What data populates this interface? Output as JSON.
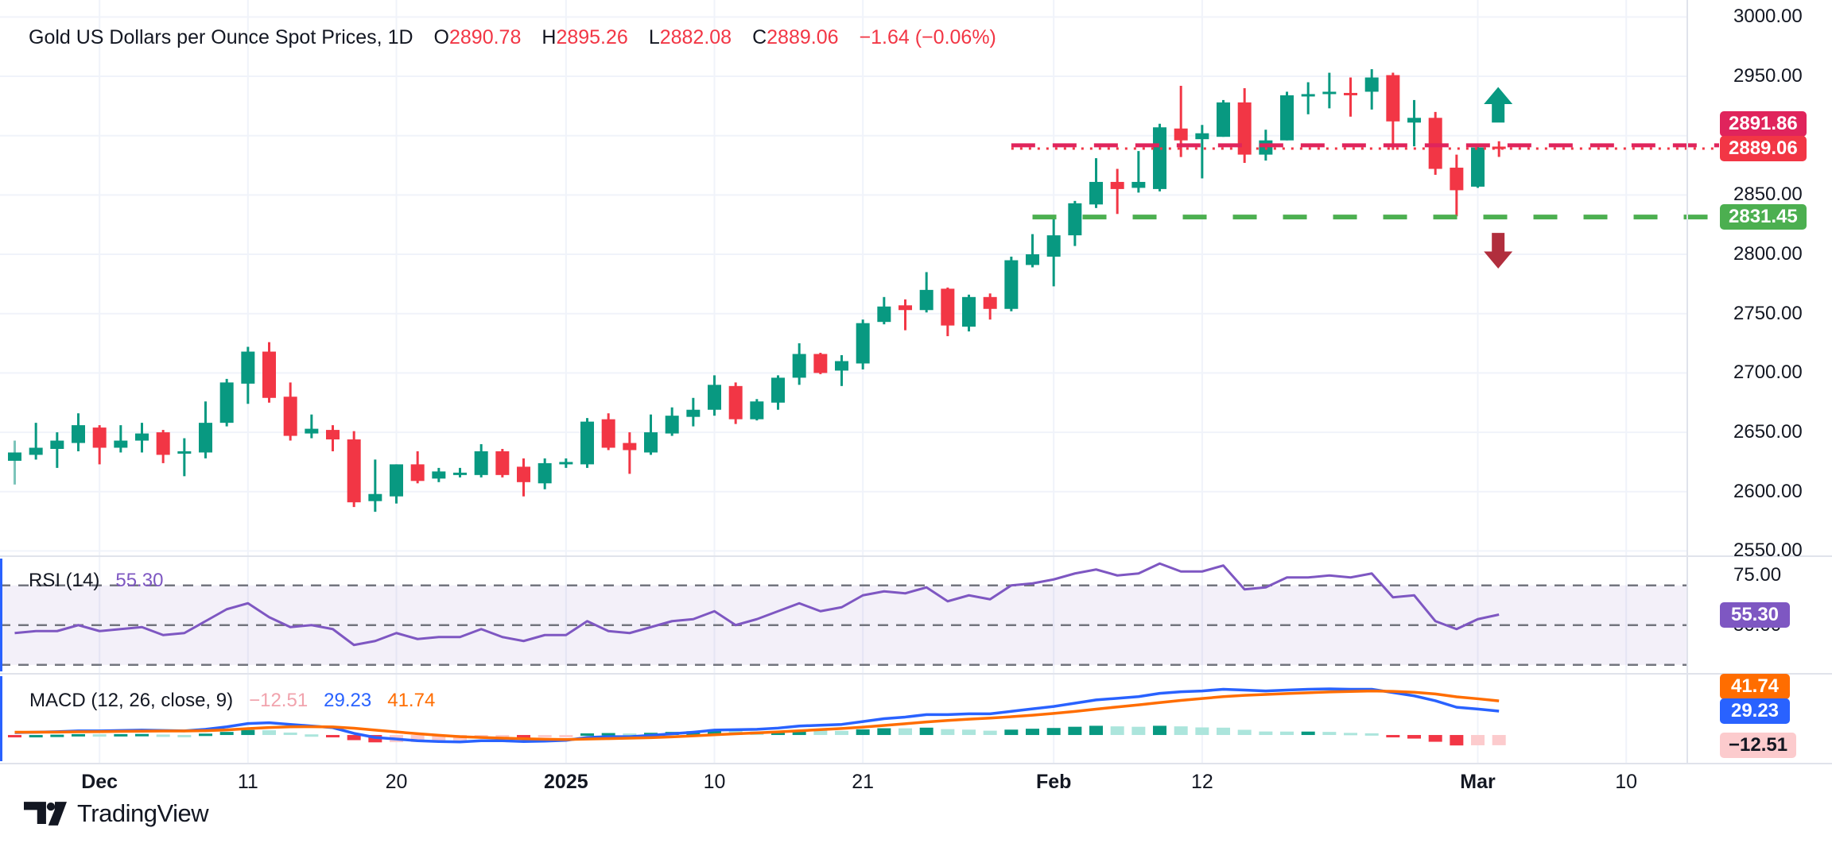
{
  "colors": {
    "up": "#089981",
    "down": "#F23645",
    "grid": "#F0F3FA",
    "separator": "#E0E3EB",
    "text": "#131722",
    "pink_line": "#E0245C",
    "close_line": "#F23645",
    "support_line": "#4CAF50",
    "rsi_line": "#7E57C2",
    "rsi_band": "#73767F",
    "rsi_fill": "rgba(126,87,194,0.09)",
    "macd_line": "#2962FF",
    "signal_line": "#FF6D00",
    "hist_up": "#089981",
    "hist_up_weak": "#ACE5DC",
    "hist_down": "#F23645",
    "hist_down_weak": "#FCCBCD",
    "down_arrow": "#B12E3D",
    "pane_accent": "#2962FF",
    "faded_wick": "#7CC4BA"
  },
  "legend": {
    "title": "Gold US Dollars per Ounce Spot Prices, 1D",
    "ohlc": [
      {
        "k": "O",
        "v": "2890.78"
      },
      {
        "k": "H",
        "v": "2895.26"
      },
      {
        "k": "L",
        "v": "2882.08"
      },
      {
        "k": "C",
        "v": "2889.06"
      }
    ],
    "change": "−1.64 (−0.06%)"
  },
  "rsi_legend": {
    "label": "RSI (14)",
    "value": "55.30"
  },
  "macd_legend": {
    "label": "MACD (12, 26, close, 9)",
    "hist": "−12.51",
    "macd": "29.23",
    "signal": "41.74"
  },
  "price_axis": {
    "ticks": [
      {
        "label": "3000.00",
        "value": 3000
      },
      {
        "label": "2950.00",
        "value": 2950
      },
      {
        "label": "2850.00",
        "value": 2850
      },
      {
        "label": "2800.00",
        "value": 2800
      },
      {
        "label": "2750.00",
        "value": 2750
      },
      {
        "label": "2700.00",
        "value": 2700
      },
      {
        "label": "2650.00",
        "value": 2650
      },
      {
        "label": "2600.00",
        "value": 2600
      },
      {
        "label": "2550.00",
        "value": 2550
      }
    ],
    "badges": [
      {
        "text": "2891.86",
        "value": 2891.86,
        "bg": "#E0245C",
        "fg": "#FFFFFF",
        "anchor": false
      },
      {
        "text": "2889.06",
        "value": 2889.06,
        "bg": "#F23645",
        "fg": "#FFFFFF",
        "anchor": true
      },
      {
        "text": "2831.45",
        "value": 2831.45,
        "bg": "#4CAF50",
        "fg": "#FFFFFF",
        "anchor": false
      }
    ]
  },
  "rsi_axis": {
    "ticks": [
      {
        "label": "75.00",
        "value": 75
      },
      {
        "label": "50.00",
        "value": 50
      }
    ],
    "badge": {
      "text": "55.30",
      "value": 55.3,
      "bg": "#7E57C2",
      "fg": "#FFFFFF"
    }
  },
  "macd_axis": {
    "badges": [
      {
        "text": "41.74",
        "value": 41.74,
        "bg": "#FF6D00",
        "fg": "#FFFFFF"
      },
      {
        "text": "29.23",
        "value": 29.23,
        "bg": "#2962FF",
        "fg": "#FFFFFF"
      },
      {
        "text": "−12.51",
        "value": -12.51,
        "bg": "#FCCBCD",
        "fg": "#131722"
      }
    ]
  },
  "time_axis": {
    "ticks": [
      {
        "label": "Dec",
        "index": 4,
        "bold": true
      },
      {
        "label": "11",
        "index": 11,
        "bold": false
      },
      {
        "label": "20",
        "index": 18,
        "bold": false
      },
      {
        "label": "2025",
        "index": 26,
        "bold": true
      },
      {
        "label": "10",
        "index": 33,
        "bold": false
      },
      {
        "label": "21",
        "index": 40,
        "bold": false
      },
      {
        "label": "Feb",
        "index": 49,
        "bold": true
      },
      {
        "label": "12",
        "index": 56,
        "bold": false
      },
      {
        "label": "Mar",
        "index": 69,
        "bold": true
      },
      {
        "label": "10",
        "index": 76,
        "bold": false
      }
    ]
  },
  "logo": {
    "text": "TradingView"
  },
  "chart_data": {
    "type": "candlestick",
    "title": "Gold US Dollars per Ounce Spot Prices",
    "timeframe": "1D",
    "ylim": [
      2545.6,
      3014.3
    ],
    "grid_prices": [
      3000,
      2950,
      2900,
      2850,
      2800,
      2750,
      2700,
      2650,
      2600,
      2550
    ],
    "x_start": 18.5,
    "x_step": 26.667,
    "candle_width": 17,
    "first_wick_faded": true,
    "candles": [
      [
        2626,
        2643,
        2606,
        2633
      ],
      [
        2631,
        2658,
        2627,
        2637
      ],
      [
        2636,
        2650,
        2620,
        2643
      ],
      [
        2641,
        2666,
        2634,
        2656
      ],
      [
        2654,
        2656,
        2623,
        2637
      ],
      [
        2637,
        2656,
        2633,
        2643
      ],
      [
        2643,
        2658,
        2633,
        2649
      ],
      [
        2650,
        2652,
        2624,
        2631
      ],
      [
        2632,
        2645,
        2613,
        2634
      ],
      [
        2633,
        2676,
        2628,
        2658
      ],
      [
        2658,
        2695,
        2655,
        2692
      ],
      [
        2691,
        2722,
        2674,
        2718
      ],
      [
        2718,
        2726,
        2675,
        2679
      ],
      [
        2680,
        2692,
        2643,
        2647
      ],
      [
        2649,
        2665,
        2645,
        2653
      ],
      [
        2652,
        2656,
        2634,
        2644
      ],
      [
        2644,
        2651,
        2587,
        2591
      ],
      [
        2592,
        2627,
        2583,
        2598
      ],
      [
        2596,
        2623,
        2590,
        2623
      ],
      [
        2623,
        2634,
        2607,
        2609
      ],
      [
        2611,
        2620,
        2608,
        2617
      ],
      [
        2615,
        2620,
        2612,
        2616
      ],
      [
        2614,
        2640,
        2612,
        2634
      ],
      [
        2634,
        2636,
        2612,
        2614
      ],
      [
        2621,
        2628,
        2596,
        2608
      ],
      [
        2607,
        2628,
        2602,
        2624
      ],
      [
        2624,
        2628,
        2620,
        2625
      ],
      [
        2623,
        2662,
        2620,
        2659
      ],
      [
        2661,
        2666,
        2635,
        2637
      ],
      [
        2641,
        2650,
        2615,
        2635
      ],
      [
        2633,
        2665,
        2631,
        2650
      ],
      [
        2649,
        2671,
        2647,
        2664
      ],
      [
        2663,
        2679,
        2655,
        2669
      ],
      [
        2669,
        2698,
        2664,
        2690
      ],
      [
        2689,
        2692,
        2657,
        2661
      ],
      [
        2661,
        2678,
        2660,
        2676
      ],
      [
        2675,
        2698,
        2669,
        2696
      ],
      [
        2696,
        2725,
        2690,
        2716
      ],
      [
        2716,
        2717,
        2699,
        2700
      ],
      [
        2702,
        2715,
        2689,
        2710
      ],
      [
        2708,
        2745,
        2703,
        2742
      ],
      [
        2743,
        2764,
        2741,
        2756
      ],
      [
        2757,
        2762,
        2736,
        2753
      ],
      [
        2753,
        2785,
        2751,
        2770
      ],
      [
        2771,
        2772,
        2731,
        2740
      ],
      [
        2739,
        2766,
        2735,
        2764
      ],
      [
        2764,
        2767,
        2745,
        2754
      ],
      [
        2754,
        2798,
        2752,
        2795
      ],
      [
        2791,
        2817,
        2789,
        2800
      ],
      [
        2798,
        2830,
        2773,
        2816
      ],
      [
        2816,
        2845,
        2807,
        2843
      ],
      [
        2842,
        2881,
        2839,
        2861
      ],
      [
        2861,
        2872,
        2834,
        2855
      ],
      [
        2856,
        2887,
        2852,
        2861
      ],
      [
        2855,
        2910,
        2853,
        2907
      ],
      [
        2906,
        2942,
        2882,
        2896
      ],
      [
        2897,
        2909,
        2864,
        2902
      ],
      [
        2899,
        2930,
        2899,
        2928
      ],
      [
        2928,
        2940,
        2877,
        2884
      ],
      [
        2884,
        2905,
        2879,
        2896
      ],
      [
        2896,
        2937,
        2896,
        2934
      ],
      [
        2933,
        2945,
        2918,
        2935
      ],
      [
        2935,
        2953,
        2923,
        2937
      ],
      [
        2936,
        2949,
        2916,
        2934
      ],
      [
        2937,
        2956,
        2922,
        2949
      ],
      [
        2951,
        2953,
        2888,
        2912
      ],
      [
        2911,
        2930,
        2891,
        2915
      ],
      [
        2915,
        2920,
        2867,
        2872
      ],
      [
        2873,
        2884,
        2832,
        2854
      ],
      [
        2857,
        2893,
        2856,
        2890
      ],
      [
        2890.78,
        2895.26,
        2882.08,
        2889.06
      ]
    ],
    "price_lines": [
      {
        "value": 2891.86,
        "style": "dashed",
        "color": "#E0245C",
        "start_index": 47,
        "width": 5,
        "dash": "30 22"
      },
      {
        "value": 2889.06,
        "style": "dotted",
        "color": "#F23645",
        "start_index": 47,
        "width": 3,
        "dash": "3 8"
      },
      {
        "value": 2831.45,
        "style": "dashed",
        "color": "#4CAF50",
        "start_index": 48,
        "width": 6,
        "dash": "30 33"
      }
    ],
    "arrows": [
      {
        "dir": "up",
        "index": 70,
        "price_top": 2941,
        "price_bottom": 2911,
        "color": "#089981"
      },
      {
        "dir": "down",
        "index": 70,
        "price_top": 2818,
        "price_bottom": 2788,
        "color": "#B12E3D"
      }
    ],
    "rsi": {
      "period": 14,
      "current": 55.3,
      "ylim": [
        25.5,
        84.7
      ],
      "bands": [
        70,
        50,
        30
      ],
      "values": [
        46,
        47,
        47,
        50,
        47,
        48,
        49,
        45,
        46,
        52,
        58,
        61,
        54,
        49,
        50,
        48,
        40,
        42,
        46,
        43,
        44,
        44,
        48,
        44,
        42,
        45,
        45,
        52,
        47,
        46,
        49,
        52,
        53,
        57,
        50,
        53,
        57,
        61,
        57,
        59,
        65,
        67,
        66,
        69,
        62,
        65,
        63,
        70,
        71,
        73,
        76,
        78,
        75,
        76,
        81,
        77,
        77,
        80,
        68,
        69,
        74,
        74,
        75,
        74,
        76,
        64,
        65,
        52,
        48,
        53,
        55.3
      ]
    },
    "macd": {
      "fast": 12,
      "slow": 26,
      "source": "close",
      "signal_period": 9,
      "current_macd": 29.23,
      "current_signal": 41.74,
      "current_hist": -12.51,
      "ylim": [
        -35,
        75
      ],
      "macd": [
        3,
        3.5,
        4,
        5,
        5,
        5.5,
        6,
        5.5,
        5,
        7,
        10,
        14,
        15,
        13,
        11,
        9,
        2,
        -3,
        -5,
        -7,
        -8,
        -8.5,
        -7,
        -7,
        -8,
        -7.5,
        -6.5,
        -3,
        -2,
        -2,
        -0.5,
        1.5,
        3.5,
        6,
        6.5,
        7,
        8.5,
        11,
        12,
        13,
        16.5,
        20,
        22,
        25,
        25,
        26,
        26,
        29,
        32,
        35,
        39,
        43,
        45,
        47,
        51,
        53,
        54,
        56,
        55,
        54,
        55,
        56,
        56.5,
        56,
        56,
        52,
        48,
        42,
        34,
        31.8,
        29.23
      ],
      "signal": [
        3.5,
        3.5,
        3.6,
        3.9,
        4.1,
        4.4,
        4.7,
        4.9,
        4.9,
        5.3,
        6.2,
        7.8,
        9.2,
        10,
        10.2,
        9.9,
        8.3,
        6,
        3.8,
        1.6,
        -0.3,
        -2,
        -3,
        -3.8,
        -4.6,
        -5.2,
        -5.5,
        -5,
        -4.4,
        -3.9,
        -3.2,
        -2.3,
        -1.1,
        0.3,
        1.5,
        2.6,
        3.8,
        5.2,
        6.6,
        7.9,
        9.6,
        11.7,
        13.8,
        16,
        17.8,
        19.4,
        20.7,
        22.4,
        24.3,
        26.4,
        28.9,
        31.7,
        34.4,
        36.9,
        39.7,
        42.4,
        44.7,
        47,
        48.6,
        49.7,
        50.8,
        51.8,
        52.7,
        53.4,
        53.9,
        53.5,
        52.4,
        50.3,
        46.8,
        44.4,
        41.74
      ]
    }
  }
}
